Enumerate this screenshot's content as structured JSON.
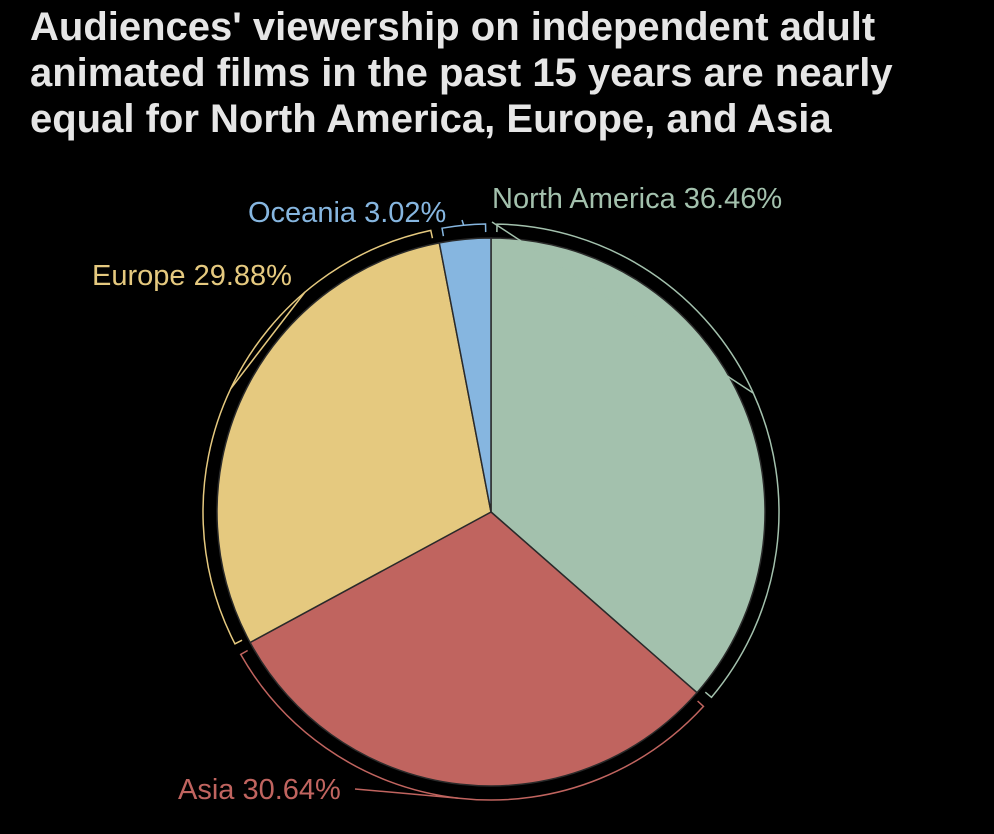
{
  "chart_data": {
    "type": "pie",
    "title": "Audiences' viewership on independent adult animated films in the past 15 years are nearly equal for North America, Europe, and Asia",
    "slices": [
      {
        "label": "North America",
        "value": 36.46,
        "display": "North America 36.46%",
        "color": "#a3c1ad"
      },
      {
        "label": "Asia",
        "value": 30.64,
        "display": "Asia 30.64%",
        "color": "#c0645f"
      },
      {
        "label": "Europe",
        "value": 29.88,
        "display": "Europe 29.88%",
        "color": "#e5c97f"
      },
      {
        "label": "Oceania",
        "value": 3.02,
        "display": "Oceania 3.02%",
        "color": "#86b6e0"
      }
    ],
    "start_angle": "12 o'clock",
    "direction": "clockwise",
    "legend": "none",
    "labels": "outside with bracket leaders"
  }
}
